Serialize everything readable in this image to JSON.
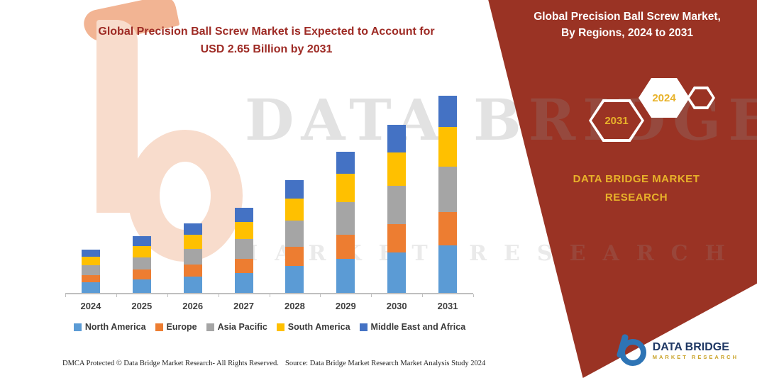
{
  "colors": {
    "brand_red": "#9E2B25",
    "panel_red": "#9A3324",
    "gold": "#E8B22A",
    "logo_navy": "#1F3864",
    "logo_blue": "#2E74B5"
  },
  "header": {
    "title_line1": "Global Precision Ball Screw Market is Expected to Account for",
    "title_line2": "USD 2.65 Billion by 2031"
  },
  "side_panel": {
    "title_line1": "Global Precision Ball Screw Market,",
    "title_line2": "By Regions, 2024 to 2031",
    "hexagons": [
      {
        "label": "2031"
      },
      {
        "label": "2024"
      }
    ],
    "brand_line1": "DATA BRIDGE MARKET",
    "brand_line2": "RESEARCH"
  },
  "watermark": {
    "line1": "DATA BRIDGE",
    "line2": "MARKET RESEARCH"
  },
  "footer": {
    "dmca": "DMCA Protected © Data Bridge Market Research-  All Rights Reserved.",
    "source": "Source: Data Bridge Market Research  Market Analysis Study 2024"
  },
  "logo": {
    "title": "DATA BRIDGE",
    "subtitle": "MARKET RESEARCH"
  },
  "chart_data": {
    "type": "bar",
    "stacked": true,
    "title": "Global Precision Ball Screw Market is Expected to Account for USD 2.65 Billion by 2031",
    "unit": "USD Billion",
    "categories": [
      "2024",
      "2025",
      "2026",
      "2027",
      "2028",
      "2029",
      "2030",
      "2031"
    ],
    "series": [
      {
        "name": "North America",
        "color": "#5B9BD5",
        "values": [
          0.14,
          0.18,
          0.22,
          0.27,
          0.36,
          0.46,
          0.54,
          0.64
        ]
      },
      {
        "name": "Europe",
        "color": "#ED7D31",
        "values": [
          0.1,
          0.13,
          0.16,
          0.19,
          0.26,
          0.32,
          0.38,
          0.45
        ]
      },
      {
        "name": "Asia Pacific",
        "color": "#A5A5A5",
        "values": [
          0.13,
          0.17,
          0.21,
          0.26,
          0.35,
          0.44,
          0.52,
          0.61
        ]
      },
      {
        "name": "South America",
        "color": "#FFC000",
        "values": [
          0.12,
          0.15,
          0.19,
          0.23,
          0.3,
          0.38,
          0.45,
          0.53
        ]
      },
      {
        "name": "Middle East and Africa",
        "color": "#4472C4",
        "values": [
          0.09,
          0.13,
          0.15,
          0.19,
          0.24,
          0.3,
          0.37,
          0.42
        ]
      }
    ],
    "totals": [
      0.58,
      0.76,
      0.93,
      1.14,
      1.51,
      1.9,
      2.26,
      2.65
    ],
    "xlabel": "",
    "ylabel": "",
    "ylim": [
      0,
      3.0
    ],
    "y_axis_visible": false,
    "grid": false,
    "legend_position": "bottom"
  }
}
